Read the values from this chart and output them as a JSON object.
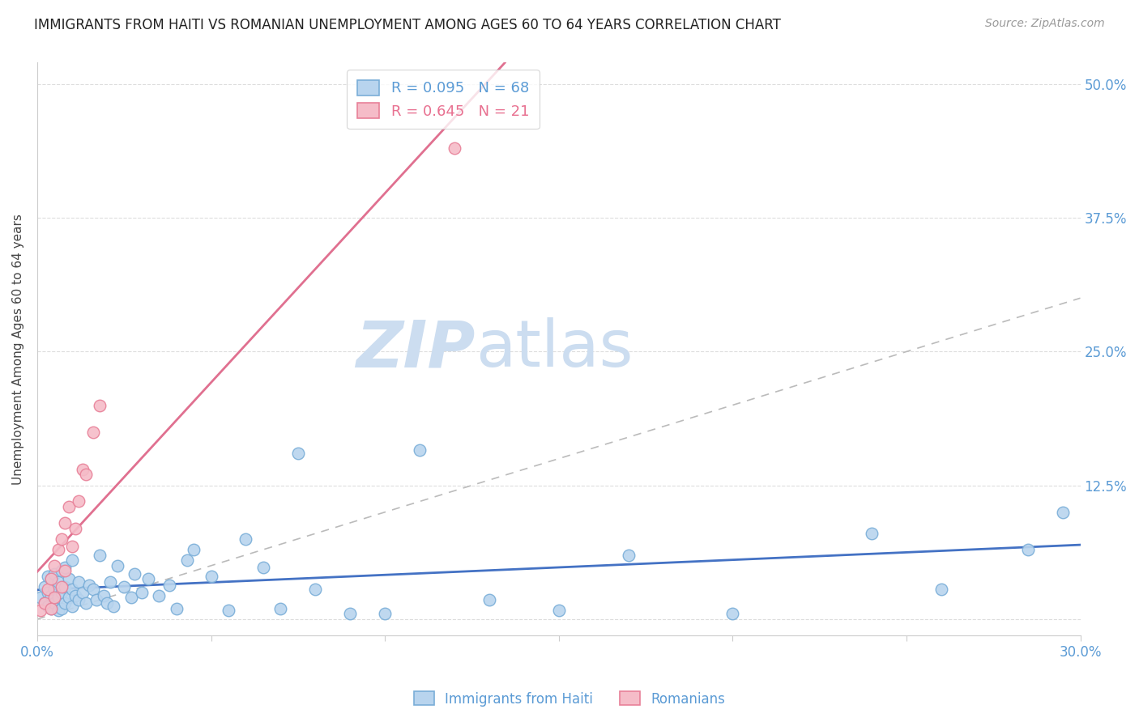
{
  "title": "IMMIGRANTS FROM HAITI VS ROMANIAN UNEMPLOYMENT AMONG AGES 60 TO 64 YEARS CORRELATION CHART",
  "source": "Source: ZipAtlas.com",
  "ylabel": "Unemployment Among Ages 60 to 64 years",
  "xlim": [
    0.0,
    0.3
  ],
  "ylim": [
    -0.015,
    0.52
  ],
  "yticks": [
    0.0,
    0.125,
    0.25,
    0.375,
    0.5
  ],
  "ytick_labels": [
    "",
    "12.5%",
    "25.0%",
    "37.5%",
    "50.0%"
  ],
  "xticks": [
    0.0,
    0.05,
    0.1,
    0.15,
    0.2,
    0.25,
    0.3
  ],
  "xtick_labels": [
    "0.0%",
    "",
    "",
    "",
    "",
    "",
    "30.0%"
  ],
  "haiti_color": "#b8d4ee",
  "haiti_edge": "#7aaed8",
  "romanian_color": "#f5bcc8",
  "romanian_edge": "#e88098",
  "haiti_R": 0.095,
  "haiti_N": 68,
  "romanian_R": 0.645,
  "romanian_N": 21,
  "watermark_zip": "ZIP",
  "watermark_atlas": "atlas",
  "watermark_color": "#ccddf0",
  "tick_label_color": "#5b9bd5",
  "romanian_text_color": "#e87090",
  "haiti_line_color": "#4472c4",
  "romanian_line_color": "#e07090",
  "diag_color": "#bbbbbb",
  "haiti_x": [
    0.001,
    0.002,
    0.002,
    0.003,
    0.003,
    0.003,
    0.004,
    0.004,
    0.004,
    0.005,
    0.005,
    0.005,
    0.006,
    0.006,
    0.006,
    0.007,
    0.007,
    0.007,
    0.008,
    0.008,
    0.008,
    0.009,
    0.009,
    0.01,
    0.01,
    0.01,
    0.011,
    0.012,
    0.012,
    0.013,
    0.014,
    0.015,
    0.016,
    0.017,
    0.018,
    0.019,
    0.02,
    0.021,
    0.022,
    0.023,
    0.025,
    0.027,
    0.028,
    0.03,
    0.032,
    0.035,
    0.038,
    0.04,
    0.043,
    0.045,
    0.05,
    0.055,
    0.06,
    0.065,
    0.07,
    0.075,
    0.08,
    0.09,
    0.1,
    0.11,
    0.13,
    0.15,
    0.17,
    0.2,
    0.24,
    0.26,
    0.285,
    0.295
  ],
  "haiti_y": [
    0.02,
    0.015,
    0.03,
    0.012,
    0.025,
    0.04,
    0.01,
    0.022,
    0.038,
    0.015,
    0.028,
    0.042,
    0.008,
    0.02,
    0.035,
    0.01,
    0.025,
    0.045,
    0.015,
    0.03,
    0.048,
    0.02,
    0.038,
    0.012,
    0.028,
    0.055,
    0.022,
    0.018,
    0.035,
    0.025,
    0.015,
    0.032,
    0.028,
    0.018,
    0.06,
    0.022,
    0.015,
    0.035,
    0.012,
    0.05,
    0.03,
    0.02,
    0.042,
    0.025,
    0.038,
    0.022,
    0.032,
    0.01,
    0.055,
    0.065,
    0.04,
    0.008,
    0.075,
    0.048,
    0.01,
    0.155,
    0.028,
    0.005,
    0.005,
    0.158,
    0.018,
    0.008,
    0.06,
    0.005,
    0.08,
    0.028,
    0.065,
    0.1
  ],
  "romanian_x": [
    0.001,
    0.002,
    0.003,
    0.004,
    0.004,
    0.005,
    0.005,
    0.006,
    0.007,
    0.007,
    0.008,
    0.008,
    0.009,
    0.01,
    0.011,
    0.012,
    0.013,
    0.014,
    0.016,
    0.018,
    0.12
  ],
  "romanian_y": [
    0.008,
    0.015,
    0.028,
    0.01,
    0.038,
    0.02,
    0.05,
    0.065,
    0.03,
    0.075,
    0.045,
    0.09,
    0.105,
    0.068,
    0.085,
    0.11,
    0.14,
    0.135,
    0.175,
    0.2,
    0.44
  ]
}
